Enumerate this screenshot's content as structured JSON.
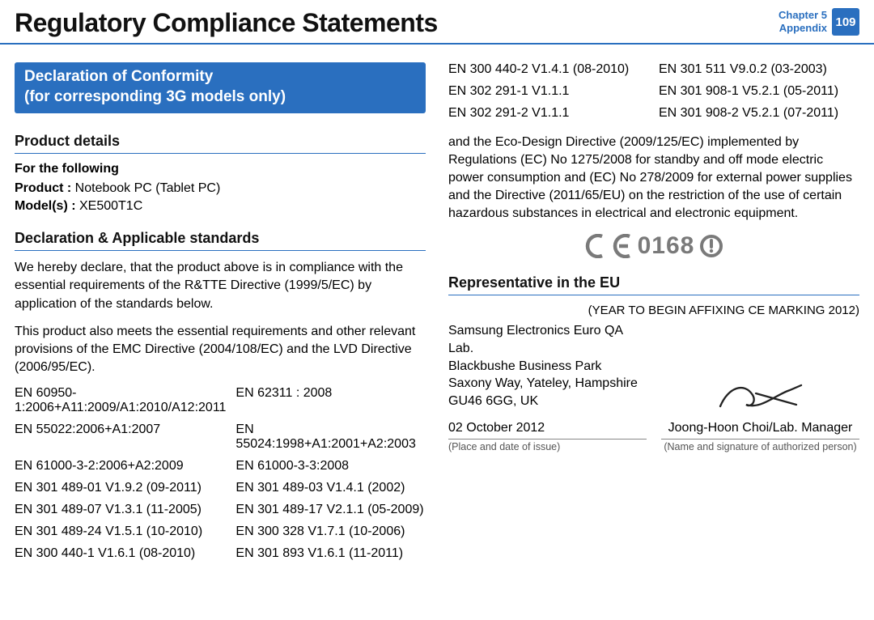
{
  "header": {
    "title": "Regulatory Compliance Statements",
    "chapter_line1": "Chapter 5",
    "chapter_line2": "Appendix",
    "page_number": "109"
  },
  "colors": {
    "brand_blue": "#2a6fbf",
    "ce_gray": "#7a7a7a"
  },
  "left": {
    "blue_heading_line1": "Declaration of Conformity",
    "blue_heading_line2": "(for corresponding 3G models only)",
    "section_product_details": "Product details",
    "for_the_following": "For the following",
    "product_label": "Product :",
    "product_value": " Notebook PC (Tablet PC)",
    "models_label": "Model(s) :",
    "models_value": " XE500T1C",
    "section_declaration": "Declaration & Applicable standards",
    "para1": "We hereby declare, that the product above is in compliance with the essential requirements of the R&TTE Directive (1999/5/EC) by application of the standards below.",
    "para2": "This product also meets the essential requirements and other relevant provisions of the EMC Directive (2004/108/EC) and the LVD Directive (2006/95/EC).",
    "standards": [
      "EN 60950-1:2006+A11:2009/A1:2010/A12:2011",
      "EN 62311 : 2008",
      "EN 55022:2006+A1:2007",
      "EN 55024:1998+A1:2001+A2:2003",
      "EN 61000-3-2:2006+A2:2009",
      "EN 61000-3-3:2008",
      "EN 301 489-01 V1.9.2 (09-2011)",
      "EN 301 489-03 V1.4.1 (2002)",
      "EN 301 489-07 V1.3.1 (11-2005)",
      "EN 301 489-17 V2.1.1 (05-2009)",
      "EN 301 489-24 V1.5.1 (10-2010)",
      "EN 300 328 V1.7.1 (10-2006)",
      "EN 300 440-1 V1.6.1 (08-2010)",
      "EN 301 893 V1.6.1 (11-2011)"
    ]
  },
  "right": {
    "standards": [
      "EN 300 440-2 V1.4.1 (08-2010)",
      "EN 301 511 V9.0.2 (03-2003)",
      "EN 302 291-1 V1.1.1",
      "EN 301 908-1 V5.2.1 (05-2011)",
      "EN 302 291-2 V1.1.1",
      "EN 301 908-2 V5.2.1 (07-2011)"
    ],
    "eco_para": "and the Eco-Design Directive (2009/125/EC) implemented by Regulations (EC) No 1275/2008 for standby and off mode electric power consumption and (EC) No 278/2009 for external power supplies and the Directive (2011/65/EU) on the restriction of the use of certain hazardous substances in electrical and electronic equipment.",
    "ce_number": "0168",
    "section_representative": "Representative in the EU",
    "year_line": "(YEAR TO BEGIN AFFIXING CE MARKING 2012)",
    "address_lines": [
      "Samsung Electronics Euro QA Lab.",
      "Blackbushe Business Park",
      "Saxony Way, Yateley, Hampshire",
      "GU46 6GG, UK"
    ],
    "date": "02 October 2012",
    "date_caption": "(Place and date of issue)",
    "signer": "Joong-Hoon Choi/Lab. Manager",
    "signer_caption": "(Name and signature of authorized person)"
  }
}
